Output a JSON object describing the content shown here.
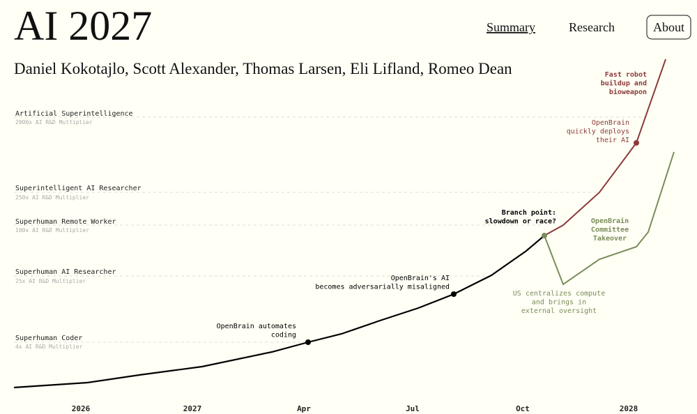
{
  "header": {
    "title": "AI 2027",
    "authors": "Daniel Kokotajlo, Scott Alexander, Thomas Larsen, Eli Lifland, Romeo Dean",
    "nav": [
      "Summary",
      "Research",
      "About"
    ]
  },
  "levels": [
    {
      "name": "Artificial Superintelligence",
      "multiplier": "2000x AI R&D Multiplier"
    },
    {
      "name": "Superintelligent AI Researcher",
      "multiplier": "250x AI R&D Multiplier"
    },
    {
      "name": "Superhuman Remote Worker",
      "multiplier": "100x AI R&D Multiplier"
    },
    {
      "name": "Superhuman AI Researcher",
      "multiplier": "25x AI R&D Multiplier"
    },
    {
      "name": "Superhuman Coder",
      "multiplier": "4x AI R&D Multiplier"
    }
  ],
  "annotations": [
    {
      "lines": [
        "Fast robot",
        "buildup and",
        "bioweapon"
      ]
    },
    {
      "lines": [
        "OpenBrain",
        "quickly deploys",
        "their AI"
      ]
    },
    {
      "lines": [
        "Branch point:",
        "slowdown or race?"
      ]
    },
    {
      "lines": [
        "OpenBrain",
        "Committee",
        "Takeover"
      ]
    },
    {
      "lines": [
        "OpenBrain's AI",
        "becomes adversarially misaligned"
      ]
    },
    {
      "lines": [
        "US centralizes compute",
        "and brings in",
        "external oversight"
      ]
    },
    {
      "lines": [
        "OpenBrain automates",
        "coding"
      ]
    }
  ],
  "x_labels": [
    "2026",
    "2027",
    "Apr",
    "Jul",
    "Oct",
    "2028"
  ]
}
